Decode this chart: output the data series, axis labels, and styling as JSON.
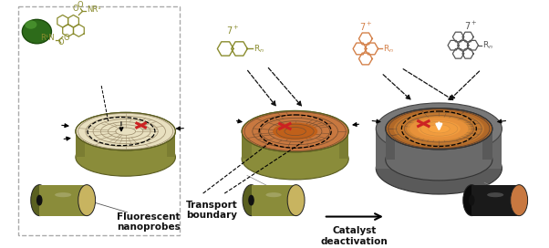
{
  "bg_color": "#ffffff",
  "olive_body": "#8a8c3a",
  "olive_body_dark": "#6a6c2a",
  "olive_body_light": "#aab050",
  "olive_body_side": "#7a7c2e",
  "cream_maze": "#f0ead8",
  "orange_maze": "#c87840",
  "orange_light": "#d4904a",
  "gray_body": "#6a6a6a",
  "gray_body_dark": "#4a4a4a",
  "gray_body_light": "#8a8a8a",
  "gray_top": "#787878",
  "red_x": "#cc2222",
  "black": "#1a1a1a",
  "olive_mol": "#8a8c2e",
  "orange_mol": "#d4814a",
  "gray_mol": "#555555",
  "green_ball": "#3a6a1a",
  "green_ball_hi": "#5a9a3a",
  "texts": {
    "fluorescent": "Fluorescent\nnanoprobes",
    "transport": "Transport\nboundary",
    "deactivation": "Catalyst\ndeactivation"
  }
}
